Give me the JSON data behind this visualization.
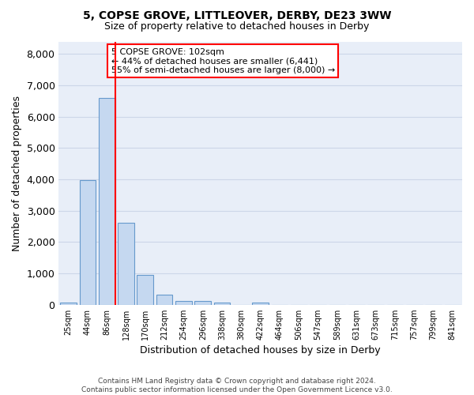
{
  "title_line1": "5, COPSE GROVE, LITTLEOVER, DERBY, DE23 3WW",
  "title_line2": "Size of property relative to detached houses in Derby",
  "xlabel": "Distribution of detached houses by size in Derby",
  "ylabel": "Number of detached properties",
  "bar_color": "#c5d8f0",
  "bar_edge_color": "#6699cc",
  "vline_color": "red",
  "annotation_title": "5 COPSE GROVE: 102sqm",
  "annotation_line1": "← 44% of detached houses are smaller (6,441)",
  "annotation_line2": "55% of semi-detached houses are larger (8,000) →",
  "categories": [
    "25sqm",
    "44sqm",
    "86sqm",
    "128sqm",
    "170sqm",
    "212sqm",
    "254sqm",
    "296sqm",
    "338sqm",
    "380sqm",
    "422sqm",
    "464sqm",
    "506sqm",
    "547sqm",
    "589sqm",
    "631sqm",
    "673sqm",
    "715sqm",
    "757sqm",
    "799sqm",
    "841sqm"
  ],
  "bar_heights": [
    75,
    3980,
    6600,
    2620,
    960,
    330,
    130,
    110,
    70,
    0,
    70,
    0,
    0,
    0,
    0,
    0,
    0,
    0,
    0,
    0,
    0
  ],
  "ylim": [
    0,
    8400
  ],
  "yticks": [
    0,
    1000,
    2000,
    3000,
    4000,
    5000,
    6000,
    7000,
    8000
  ],
  "grid_color": "#ccd6e8",
  "background_color": "#e8eef8",
  "footer_line1": "Contains HM Land Registry data © Crown copyright and database right 2024.",
  "footer_line2": "Contains public sector information licensed under the Open Government Licence v3.0."
}
